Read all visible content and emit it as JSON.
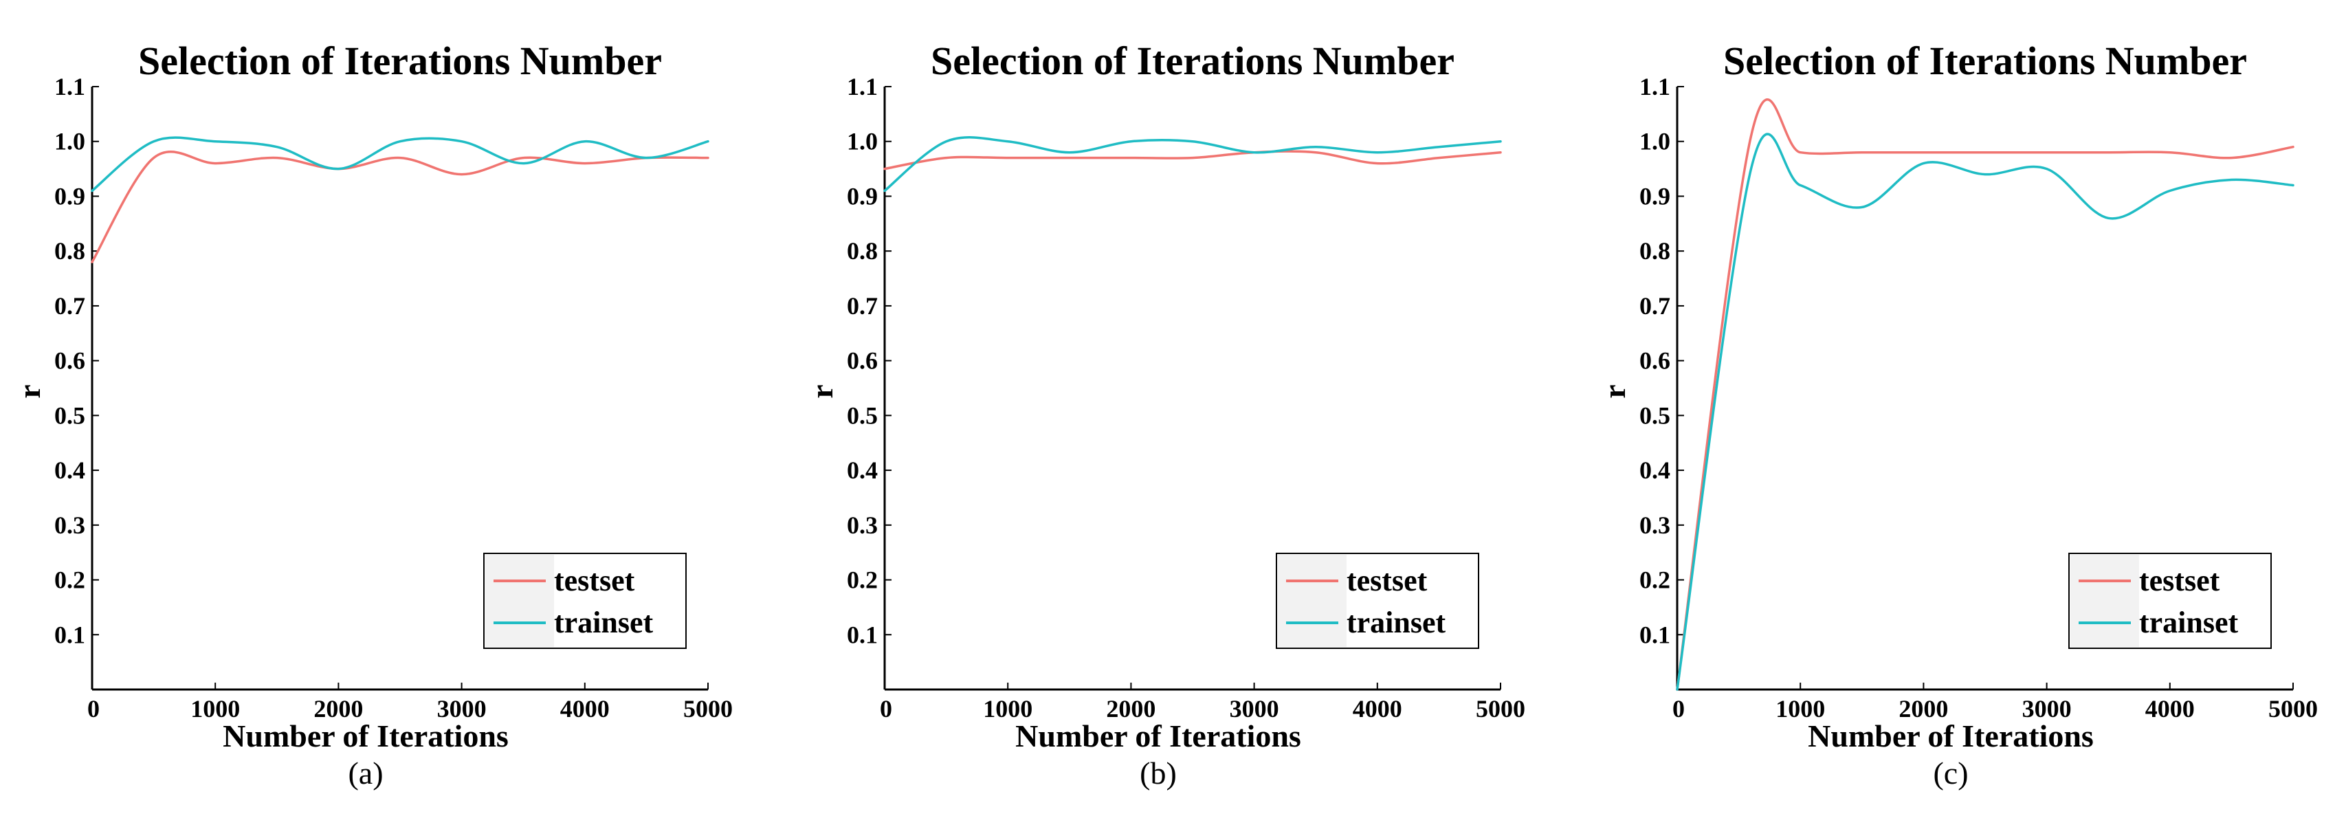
{
  "chart_data": [
    {
      "type": "line",
      "caption": "(a)",
      "title": "Selection of Iterations Number",
      "xlabel": "Number of Iterations",
      "ylabel": "r",
      "xlim": [
        0,
        5000
      ],
      "ylim": [
        0,
        1.1
      ],
      "xticks": [
        "0",
        "1000",
        "2000",
        "3000",
        "4000",
        "5000"
      ],
      "yticks": [
        "0.1",
        "0.2",
        "0.3",
        "0.4",
        "0.5",
        "0.6",
        "0.7",
        "0.8",
        "0.9",
        "1.0",
        "1.1"
      ],
      "legend_position": "bottom-right",
      "grid": false,
      "x": [
        0,
        500,
        1000,
        1500,
        2000,
        2500,
        3000,
        3500,
        4000,
        4500,
        5000
      ],
      "series": [
        {
          "name": "testset",
          "color": "#f07470",
          "values": [
            0.78,
            0.97,
            0.96,
            0.97,
            0.95,
            0.97,
            0.94,
            0.97,
            0.96,
            0.97,
            0.97
          ]
        },
        {
          "name": "trainset",
          "color": "#1fbcc4",
          "values": [
            0.91,
            1.0,
            1.0,
            0.99,
            0.95,
            1.0,
            1.0,
            0.96,
            1.0,
            0.97,
            1.0
          ]
        }
      ]
    },
    {
      "type": "line",
      "caption": "(b)",
      "title": "Selection of Iterations Number",
      "xlabel": "Number of Iterations",
      "ylabel": "r",
      "xlim": [
        0,
        5000
      ],
      "ylim": [
        0,
        1.1
      ],
      "xticks": [
        "0",
        "1000",
        "2000",
        "3000",
        "4000",
        "5000"
      ],
      "yticks": [
        "0.1",
        "0.2",
        "0.3",
        "0.4",
        "0.5",
        "0.6",
        "0.7",
        "0.8",
        "0.9",
        "1.0",
        "1.1"
      ],
      "legend_position": "bottom-right",
      "grid": false,
      "x": [
        0,
        500,
        1000,
        1500,
        2000,
        2500,
        3000,
        3500,
        4000,
        4500,
        5000
      ],
      "series": [
        {
          "name": "testset",
          "color": "#f07470",
          "values": [
            0.95,
            0.97,
            0.97,
            0.97,
            0.97,
            0.97,
            0.98,
            0.98,
            0.96,
            0.97,
            0.98
          ]
        },
        {
          "name": "trainset",
          "color": "#1fbcc4",
          "values": [
            0.91,
            1.0,
            1.0,
            0.98,
            1.0,
            1.0,
            0.98,
            0.99,
            0.98,
            0.99,
            1.0
          ]
        }
      ]
    },
    {
      "type": "line",
      "caption": "(c)",
      "title": "Selection of Iterations Number",
      "xlabel": "Number of Iterations",
      "ylabel": "r",
      "xlim": [
        0,
        5000
      ],
      "ylim": [
        0,
        1.1
      ],
      "xticks": [
        "0",
        "1000",
        "2000",
        "3000",
        "4000",
        "5000"
      ],
      "yticks": [
        "0.1",
        "0.2",
        "0.3",
        "0.4",
        "0.5",
        "0.6",
        "0.7",
        "0.8",
        "0.9",
        "1.0",
        "1.1"
      ],
      "legend_position": "bottom-right",
      "grid": false,
      "x": [
        0,
        600,
        1000,
        1500,
        2000,
        2500,
        3000,
        3500,
        4000,
        4500,
        5000
      ],
      "series": [
        {
          "name": "testset",
          "color": "#f07470",
          "values": [
            0.0,
            1.01,
            0.98,
            0.98,
            0.98,
            0.98,
            0.98,
            0.98,
            0.98,
            0.97,
            0.99
          ]
        },
        {
          "name": "trainset",
          "color": "#1fbcc4",
          "values": [
            0.0,
            0.95,
            0.92,
            0.88,
            0.96,
            0.94,
            0.95,
            0.86,
            0.91,
            0.93,
            0.92
          ]
        }
      ]
    }
  ]
}
